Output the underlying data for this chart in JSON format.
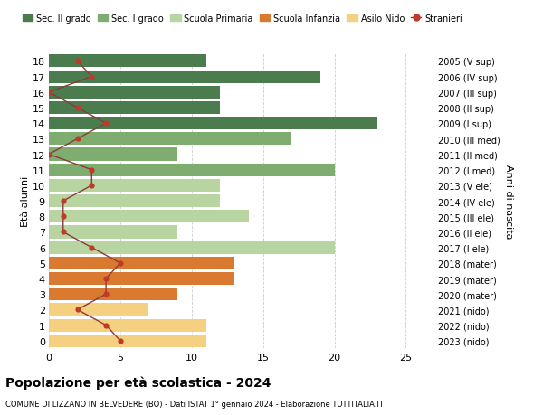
{
  "ages": [
    18,
    17,
    16,
    15,
    14,
    13,
    12,
    11,
    10,
    9,
    8,
    7,
    6,
    5,
    4,
    3,
    2,
    1,
    0
  ],
  "right_labels": [
    "2005 (V sup)",
    "2006 (IV sup)",
    "2007 (III sup)",
    "2008 (II sup)",
    "2009 (I sup)",
    "2010 (III med)",
    "2011 (II med)",
    "2012 (I med)",
    "2013 (V ele)",
    "2014 (IV ele)",
    "2015 (III ele)",
    "2016 (II ele)",
    "2017 (I ele)",
    "2018 (mater)",
    "2019 (mater)",
    "2020 (mater)",
    "2021 (nido)",
    "2022 (nido)",
    "2023 (nido)"
  ],
  "bar_values": [
    11,
    19,
    12,
    12,
    23,
    17,
    9,
    20,
    12,
    12,
    14,
    9,
    20,
    13,
    13,
    9,
    7,
    11,
    11
  ],
  "bar_colors": [
    "#4a7c4e",
    "#4a7c4e",
    "#4a7c4e",
    "#4a7c4e",
    "#4a7c4e",
    "#7fad6f",
    "#7fad6f",
    "#7fad6f",
    "#b8d4a0",
    "#b8d4a0",
    "#b8d4a0",
    "#b8d4a0",
    "#b8d4a0",
    "#d97a30",
    "#d97a30",
    "#d97a30",
    "#f5d080",
    "#f5d080",
    "#f5d080"
  ],
  "stranieri_values": [
    2,
    3,
    0,
    2,
    4,
    2,
    0,
    3,
    3,
    1,
    1,
    1,
    3,
    5,
    4,
    4,
    2,
    4,
    5
  ],
  "legend_labels": [
    "Sec. II grado",
    "Sec. I grado",
    "Scuola Primaria",
    "Scuola Infanzia",
    "Asilo Nido",
    "Stranieri"
  ],
  "legend_colors": [
    "#4a7c4e",
    "#7fad6f",
    "#b8d4a0",
    "#d97a30",
    "#f5d080",
    "#c0392b"
  ],
  "stranieri_line_color": "#8b3a3a",
  "stranieri_marker_color": "#c0392b",
  "ylabel": "Età alunni",
  "right_ylabel": "Anni di nascita",
  "title": "Popolazione per età scolastica - 2024",
  "subtitle": "COMUNE DI LIZZANO IN BELVEDERE (BO) - Dati ISTAT 1° gennaio 2024 - Elaborazione TUTTITALIA.IT",
  "xlim": [
    0,
    27
  ],
  "background_color": "#ffffff",
  "grid_color": "#cccccc"
}
